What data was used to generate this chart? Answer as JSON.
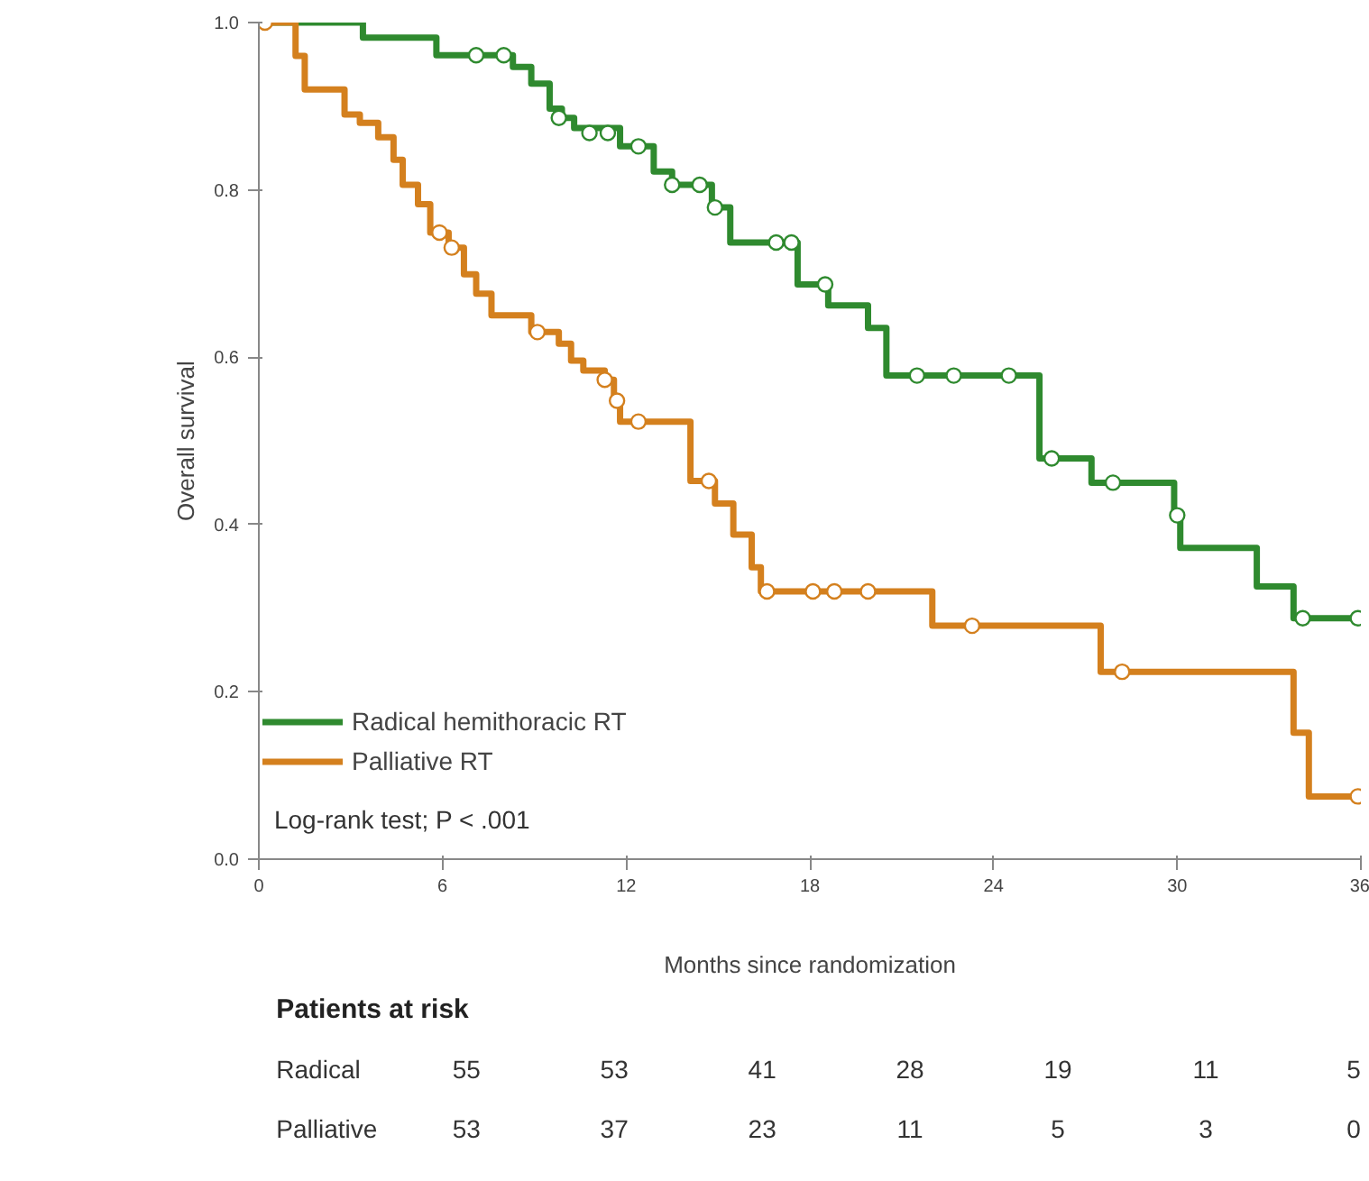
{
  "chart_data": {
    "type": "step",
    "xlabel": "Months since randomization",
    "ylabel": "Overall survival",
    "xlim": [
      0,
      36
    ],
    "ylim": [
      0,
      1.0
    ],
    "xticks": [
      0,
      6,
      12,
      18,
      24,
      30,
      36
    ],
    "yticks": [
      {
        "value": 0,
        "label": "0.0"
      },
      {
        "value": 0.2,
        "label": "0.2"
      },
      {
        "value": 0.4,
        "label": "0.4"
      },
      {
        "value": 0.6,
        "label": "0.6"
      },
      {
        "value": 0.8,
        "label": "0.8"
      },
      {
        "value": 1.0,
        "label": "1.0"
      }
    ],
    "grid": false,
    "legend": "bottom left",
    "line_style": "solid",
    "series": [
      {
        "name": "Radical hemithoracic RT",
        "color": "#2f8a2f",
        "x": [
          0,
          3.4,
          5.8,
          8.3,
          8.9,
          9.5,
          9.9,
          10.3,
          11.8,
          12.9,
          13.5,
          14.8,
          15.4,
          17.6,
          18.6,
          19.9,
          20.5,
          25.5,
          27.2,
          29.9,
          30.1,
          32.6,
          33.8,
          36
        ],
        "values": [
          1.0,
          0.982,
          0.961,
          0.947,
          0.927,
          0.897,
          0.886,
          0.874,
          0.852,
          0.822,
          0.806,
          0.779,
          0.737,
          0.687,
          0.662,
          0.635,
          0.578,
          0.479,
          0.45,
          0.411,
          0.372,
          0.326,
          0.288,
          0.288
        ]
      },
      {
        "name": "Palliative RT",
        "color": "#d4801e",
        "x": [
          0,
          1.2,
          1.5,
          2.8,
          3.3,
          3.9,
          4.4,
          4.7,
          5.2,
          5.6,
          6.2,
          6.7,
          7.1,
          7.6,
          8.9,
          9.8,
          10.2,
          10.6,
          11.3,
          11.6,
          11.8,
          14.1,
          14.9,
          15.5,
          16.1,
          16.4,
          22.0,
          27.5,
          33.8,
          34.3,
          36
        ],
        "values": [
          1.0,
          0.96,
          0.92,
          0.89,
          0.88,
          0.863,
          0.836,
          0.806,
          0.783,
          0.749,
          0.731,
          0.699,
          0.676,
          0.65,
          0.63,
          0.616,
          0.596,
          0.584,
          0.573,
          0.548,
          0.523,
          0.452,
          0.425,
          0.388,
          0.349,
          0.32,
          0.279,
          0.224,
          0.151,
          0.075,
          0.075
        ]
      },
      {
        "type": "scatter",
        "marker": "circle",
        "color": "#2f8a2f",
        "x": [
          7.1,
          8.0,
          9.8,
          10.8,
          11.4,
          12.4,
          13.5,
          14.4,
          14.9,
          16.9,
          17.4,
          18.5,
          21.5,
          22.7,
          24.5,
          25.9,
          27.9,
          30.0,
          34.1,
          35.9
        ],
        "values": [
          0.961,
          0.961,
          0.886,
          0.868,
          0.868,
          0.852,
          0.806,
          0.806,
          0.779,
          0.737,
          0.737,
          0.687,
          0.578,
          0.578,
          0.578,
          0.479,
          0.45,
          0.411,
          0.288,
          0.288
        ]
      },
      {
        "type": "scatter",
        "marker": "circle",
        "color": "#d4801e",
        "x": [
          0.2,
          5.9,
          6.3,
          9.1,
          11.3,
          11.7,
          12.4,
          14.7,
          16.6,
          18.1,
          18.8,
          19.9,
          23.3,
          28.2,
          35.9
        ],
        "values": [
          1.0,
          0.749,
          0.731,
          0.63,
          0.573,
          0.548,
          0.523,
          0.452,
          0.32,
          0.32,
          0.32,
          0.32,
          0.279,
          0.224,
          0.075
        ]
      }
    ],
    "annotations": [
      "Log-rank test; P < .001",
      "Patients at risk",
      "Radical",
      "55",
      "53",
      "41",
      "28",
      "19",
      "11",
      "5",
      "Palliative",
      "53",
      "37",
      "23",
      "11",
      "5",
      "3",
      "0"
    ]
  }
}
